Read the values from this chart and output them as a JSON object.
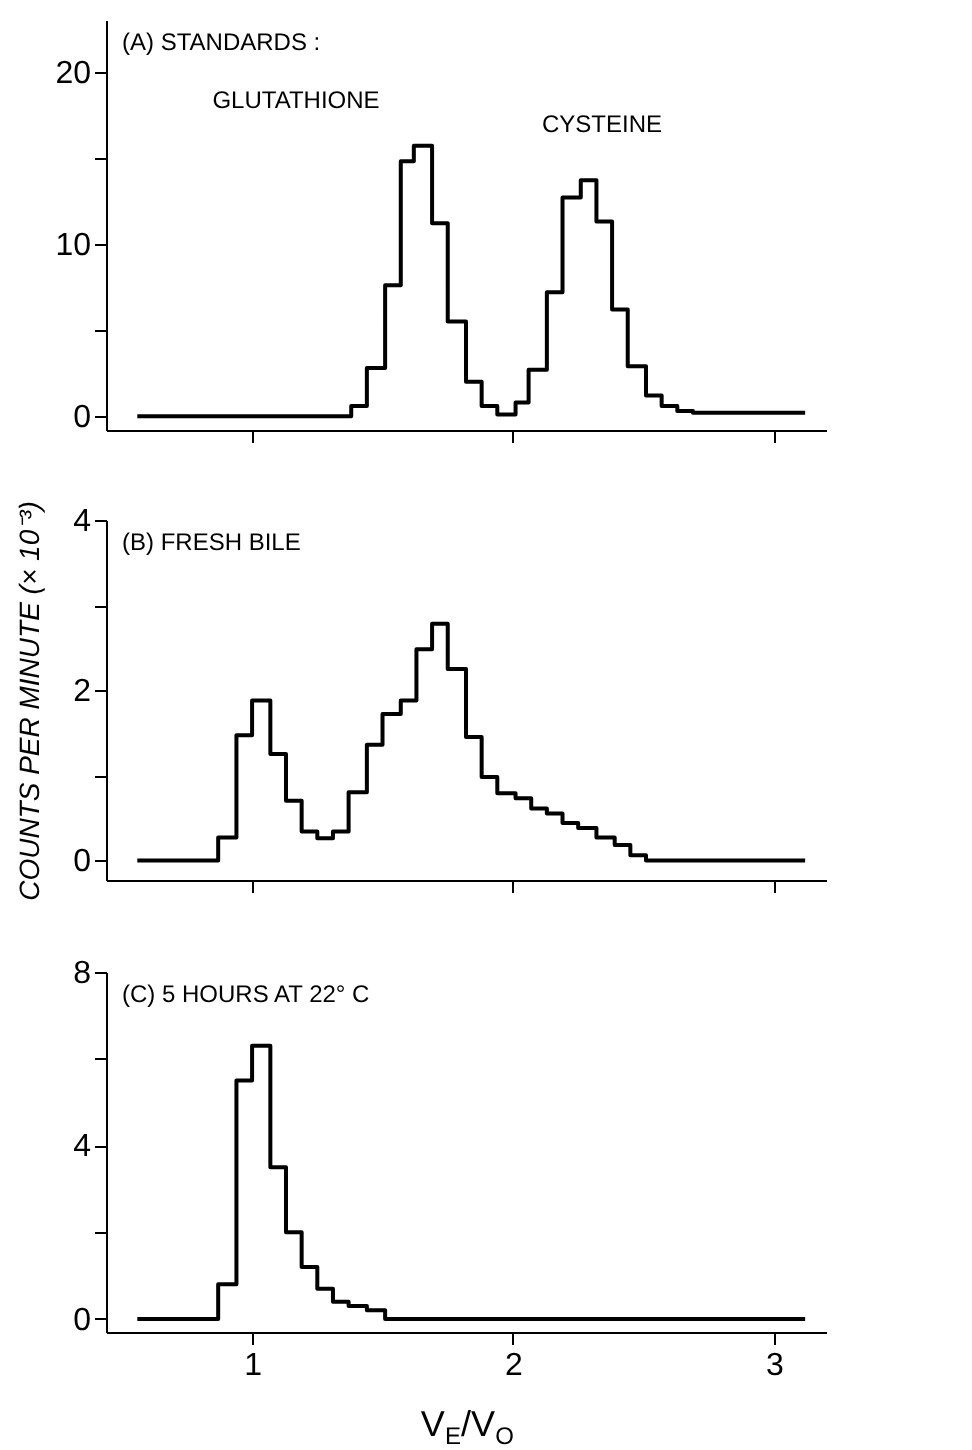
{
  "chart_data": [
    {
      "type": "step",
      "title": "(A) STANDARDS :",
      "xlim": [
        0.44,
        3.2
      ],
      "xticks": [
        1,
        2,
        3
      ],
      "ylim": [
        -0.8,
        23
      ],
      "yticks": [
        0,
        {
          "value": 5,
          "label": null
        },
        10,
        {
          "value": 15,
          "label": null
        },
        20
      ],
      "tick_labels": "y",
      "grid": false,
      "annotations": [
        "GLUTATHIONE",
        "CYSTEINE"
      ],
      "series": [
        {
          "color": "#000000",
          "x": [
            0.56,
            1.38,
            1.44,
            1.51,
            1.57,
            1.62,
            1.69,
            1.75,
            1.82,
            1.88,
            1.94,
            2.01,
            2.06,
            2.13,
            2.19,
            2.26,
            2.32,
            2.38,
            2.44,
            2.51,
            2.57,
            2.63,
            2.69,
            3.12
          ],
          "values": [
            0,
            0.6,
            2.8,
            7.6,
            14.8,
            15.7,
            11.2,
            5.5,
            2.0,
            0.6,
            0.1,
            0.8,
            2.7,
            7.2,
            12.7,
            13.7,
            11.3,
            6.2,
            2.9,
            1.2,
            0.6,
            0.3,
            0.2,
            0.2
          ]
        }
      ]
    },
    {
      "type": "step",
      "title": "(B) FRESH BILE",
      "ylabel": "COUNTS PER MINUTE (× 10⁻³)",
      "xlim": [
        0.44,
        3.2
      ],
      "xticks": [
        1,
        2,
        3
      ],
      "ylim": [
        -0.23,
        4
      ],
      "yticks": [
        0,
        {
          "value": 1,
          "label": null
        },
        2,
        {
          "value": 3,
          "label": null
        },
        4
      ],
      "tick_labels": "y",
      "grid": false,
      "series": [
        {
          "color": "#000000",
          "x": [
            0.56,
            0.87,
            0.94,
            1.0,
            1.07,
            1.13,
            1.19,
            1.25,
            1.31,
            1.37,
            1.44,
            1.5,
            1.57,
            1.63,
            1.69,
            1.75,
            1.82,
            1.88,
            1.94,
            2.01,
            2.07,
            2.13,
            2.19,
            2.25,
            2.32,
            2.39,
            2.45,
            2.51,
            3.12
          ],
          "values": [
            0,
            0.27,
            1.47,
            1.88,
            1.25,
            0.7,
            0.34,
            0.26,
            0.34,
            0.8,
            1.36,
            1.72,
            1.88,
            2.48,
            2.78,
            2.25,
            1.45,
            0.98,
            0.79,
            0.73,
            0.61,
            0.55,
            0.44,
            0.38,
            0.27,
            0.18,
            0.06,
            0,
            0
          ]
        }
      ]
    },
    {
      "type": "step",
      "title": "(C) 5 HOURS AT 22° C",
      "xlabel": "V$_{E}$/V$_{O}$",
      "xlim": [
        0.44,
        3.2
      ],
      "xticks": [
        1,
        2,
        3
      ],
      "ylim": [
        -0.3,
        8
      ],
      "yticks": [
        0,
        {
          "value": 2,
          "label": null
        },
        4,
        {
          "value": 6,
          "label": null
        },
        8
      ],
      "grid": false,
      "series": [
        {
          "color": "#000000",
          "x": [
            0.56,
            0.87,
            0.94,
            1.0,
            1.07,
            1.13,
            1.19,
            1.25,
            1.31,
            1.37,
            1.44,
            1.51,
            3.12
          ],
          "values": [
            0,
            0.8,
            5.5,
            6.3,
            3.5,
            2.0,
            1.2,
            0.7,
            0.4,
            0.3,
            0.2,
            0,
            0
          ]
        }
      ]
    }
  ]
}
